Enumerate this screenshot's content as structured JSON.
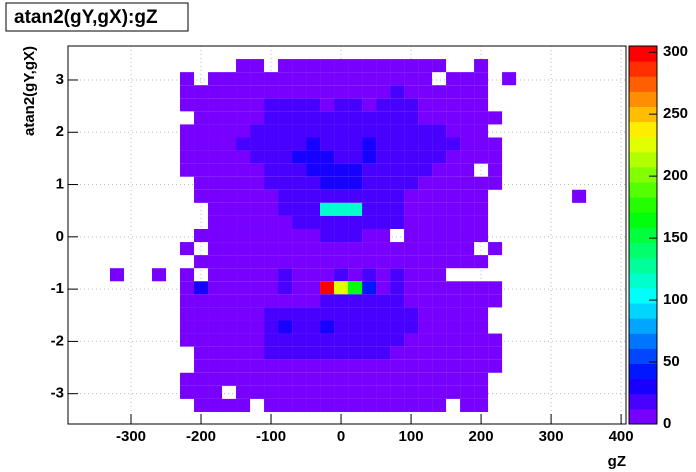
{
  "chart_data": {
    "type": "heatmap",
    "title": "atan2(gY,gX):gZ",
    "x_label": "gZ",
    "y_label": "atan2(gY,gX)",
    "xlim": [
      -390,
      407
    ],
    "ylim": [
      -3.58,
      3.65
    ],
    "zlim": [
      0,
      305
    ],
    "xticks": [
      -300,
      -200,
      -100,
      0,
      100,
      200,
      300,
      400
    ],
    "yticks": [
      -3,
      -2,
      -1,
      0,
      1,
      2,
      3
    ],
    "zticks": [
      0,
      50,
      100,
      150,
      200,
      250,
      300
    ],
    "grid": true,
    "x": [
      -240,
      -220,
      -200,
      -180,
      -160,
      -140,
      -120,
      -100,
      -80,
      -60,
      -40,
      -20,
      0,
      20,
      40,
      60,
      80,
      100,
      120,
      140,
      160,
      180,
      200,
      220,
      240
    ],
    "y": [
      3.275,
      3.025,
      2.775,
      2.525,
      2.275,
      2.025,
      1.775,
      1.525,
      1.275,
      1.025,
      0.775,
      0.525,
      0.275,
      0.025,
      -0.225,
      -0.475,
      -0.725,
      -0.975,
      -1.225,
      -1.475,
      -1.725,
      -1.975,
      -2.225,
      -2.475,
      -2.725,
      -2.975,
      -3.225
    ],
    "z": [
      [
        0,
        0,
        0,
        0,
        0,
        10,
        10,
        0,
        10,
        10,
        10,
        10,
        10,
        10,
        10,
        10,
        10,
        10,
        10,
        10,
        0,
        0,
        10,
        0,
        0
      ],
      [
        0,
        10,
        0,
        10,
        10,
        10,
        10,
        10,
        10,
        10,
        10,
        10,
        10,
        10,
        10,
        10,
        10,
        10,
        10,
        0,
        10,
        10,
        10,
        0,
        10
      ],
      [
        0,
        10,
        10,
        10,
        10,
        10,
        10,
        10,
        12,
        12,
        12,
        10,
        12,
        12,
        10,
        12,
        15,
        10,
        10,
        10,
        10,
        10,
        10,
        0,
        0
      ],
      [
        0,
        10,
        10,
        10,
        10,
        10,
        10,
        15,
        15,
        15,
        15,
        12,
        15,
        15,
        12,
        15,
        15,
        15,
        12,
        10,
        10,
        10,
        10,
        0,
        0
      ],
      [
        0,
        0,
        10,
        10,
        10,
        10,
        10,
        15,
        20,
        20,
        15,
        15,
        15,
        20,
        15,
        20,
        15,
        15,
        12,
        10,
        10,
        10,
        10,
        10,
        0
      ],
      [
        0,
        10,
        10,
        10,
        10,
        12,
        15,
        20,
        20,
        20,
        20,
        20,
        20,
        20,
        20,
        20,
        20,
        20,
        15,
        15,
        12,
        10,
        10,
        0,
        0
      ],
      [
        0,
        10,
        10,
        10,
        12,
        15,
        15,
        20,
        20,
        20,
        25,
        20,
        20,
        20,
        25,
        20,
        20,
        20,
        15,
        15,
        15,
        12,
        10,
        10,
        0
      ],
      [
        0,
        10,
        10,
        10,
        10,
        12,
        15,
        20,
        20,
        25,
        25,
        25,
        20,
        20,
        25,
        20,
        20,
        20,
        15,
        15,
        12,
        10,
        10,
        10,
        0
      ],
      [
        0,
        10,
        10,
        10,
        10,
        12,
        12,
        15,
        20,
        20,
        25,
        25,
        25,
        25,
        20,
        20,
        20,
        15,
        15,
        12,
        12,
        10,
        0,
        10,
        0
      ],
      [
        0,
        0,
        10,
        10,
        10,
        12,
        12,
        15,
        15,
        20,
        20,
        30,
        25,
        25,
        20,
        20,
        15,
        15,
        12,
        12,
        12,
        10,
        10,
        10,
        0
      ],
      [
        0,
        0,
        10,
        10,
        10,
        10,
        12,
        12,
        15,
        15,
        20,
        20,
        20,
        20,
        15,
        15,
        15,
        12,
        12,
        12,
        10,
        10,
        10,
        0,
        0
      ],
      [
        0,
        0,
        0,
        10,
        10,
        10,
        10,
        12,
        15,
        15,
        15,
        120,
        120,
        120,
        15,
        15,
        15,
        12,
        12,
        12,
        12,
        10,
        10,
        0,
        0
      ],
      [
        0,
        0,
        0,
        10,
        10,
        10,
        10,
        12,
        12,
        15,
        15,
        15,
        15,
        15,
        15,
        15,
        15,
        12,
        12,
        12,
        12,
        10,
        10,
        0,
        0
      ],
      [
        0,
        0,
        10,
        10,
        10,
        10,
        10,
        12,
        12,
        12,
        12,
        15,
        15,
        15,
        12,
        12,
        0,
        12,
        12,
        12,
        10,
        10,
        10,
        0,
        0
      ],
      [
        0,
        10,
        0,
        10,
        10,
        10,
        10,
        12,
        12,
        12,
        12,
        12,
        12,
        12,
        12,
        12,
        12,
        12,
        12,
        12,
        10,
        10,
        0,
        10,
        0
      ],
      [
        0,
        0,
        10,
        10,
        10,
        10,
        10,
        12,
        12,
        12,
        12,
        12,
        12,
        12,
        12,
        12,
        12,
        12,
        12,
        12,
        10,
        10,
        10,
        0,
        0
      ],
      [
        0,
        10,
        0,
        10,
        10,
        10,
        10,
        10,
        15,
        12,
        12,
        12,
        15,
        12,
        15,
        12,
        15,
        12,
        12,
        10,
        0,
        0,
        0,
        0,
        0
      ],
      [
        0,
        10,
        30,
        10,
        10,
        10,
        10,
        10,
        15,
        12,
        12,
        300,
        220,
        170,
        40,
        12,
        15,
        12,
        12,
        10,
        10,
        10,
        10,
        10,
        0
      ],
      [
        0,
        10,
        10,
        10,
        10,
        10,
        10,
        12,
        12,
        12,
        12,
        15,
        15,
        15,
        15,
        15,
        15,
        12,
        12,
        12,
        10,
        10,
        10,
        10,
        0
      ],
      [
        0,
        10,
        10,
        10,
        10,
        10,
        12,
        15,
        15,
        20,
        15,
        15,
        20,
        20,
        15,
        20,
        15,
        15,
        12,
        12,
        10,
        10,
        10,
        0,
        0
      ],
      [
        0,
        10,
        10,
        10,
        10,
        10,
        12,
        20,
        30,
        20,
        20,
        30,
        15,
        20,
        20,
        20,
        15,
        15,
        12,
        12,
        10,
        10,
        10,
        0,
        0
      ],
      [
        0,
        10,
        10,
        10,
        10,
        10,
        12,
        15,
        20,
        20,
        15,
        20,
        20,
        15,
        20,
        15,
        15,
        12,
        12,
        10,
        10,
        10,
        10,
        10,
        0
      ],
      [
        0,
        0,
        10,
        10,
        10,
        10,
        12,
        15,
        15,
        15,
        15,
        15,
        20,
        15,
        15,
        15,
        12,
        12,
        12,
        10,
        10,
        10,
        10,
        10,
        0
      ],
      [
        0,
        0,
        10,
        10,
        10,
        10,
        10,
        12,
        12,
        12,
        12,
        12,
        12,
        12,
        12,
        12,
        12,
        12,
        10,
        10,
        10,
        10,
        10,
        10,
        0
      ],
      [
        0,
        10,
        10,
        10,
        10,
        10,
        10,
        12,
        12,
        12,
        12,
        10,
        12,
        12,
        10,
        12,
        10,
        10,
        10,
        10,
        10,
        10,
        10,
        0,
        0
      ],
      [
        0,
        10,
        10,
        10,
        0,
        10,
        10,
        10,
        10,
        10,
        10,
        10,
        10,
        10,
        10,
        10,
        10,
        10,
        10,
        10,
        10,
        10,
        10,
        0,
        0
      ],
      [
        0,
        0,
        10,
        10,
        10,
        10,
        0,
        10,
        10,
        10,
        10,
        10,
        10,
        10,
        10,
        10,
        10,
        10,
        10,
        10,
        0,
        10,
        10,
        0,
        0
      ]
    ],
    "outliers": [
      {
        "x": -320,
        "y": -0.725,
        "z": 10
      },
      {
        "x": -260,
        "y": -0.725,
        "z": 10
      },
      {
        "x": 340,
        "y": 0.775,
        "z": 10
      }
    ]
  }
}
